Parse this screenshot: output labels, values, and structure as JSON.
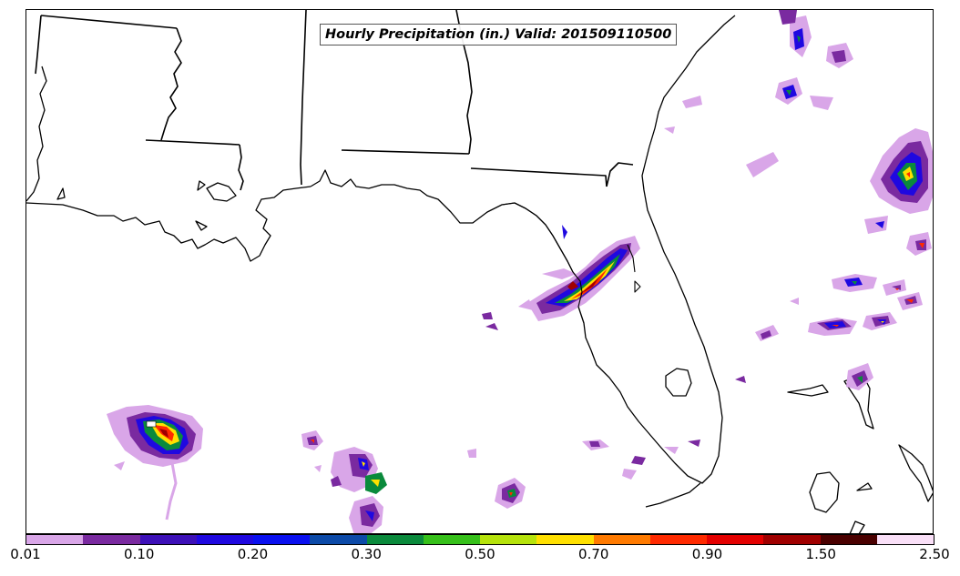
{
  "title": "Hourly Precipitation (in.) Valid: 201509110500",
  "colorbar": {
    "colors": [
      "#d9a6e8",
      "#7a2aa0",
      "#3d10b8",
      "#1f08e0",
      "#0a10f0",
      "#0c4aa8",
      "#0a8a3c",
      "#36c01a",
      "#b6e30c",
      "#ffe000",
      "#ff7a00",
      "#ff2a00",
      "#e40000",
      "#a00000",
      "#4a0000",
      "#fae0f8"
    ],
    "tick_labels": [
      "0.01",
      "0.10",
      "0.20",
      "0.30",
      "0.50",
      "0.70",
      "0.90",
      "1.50",
      "2.50"
    ]
  }
}
